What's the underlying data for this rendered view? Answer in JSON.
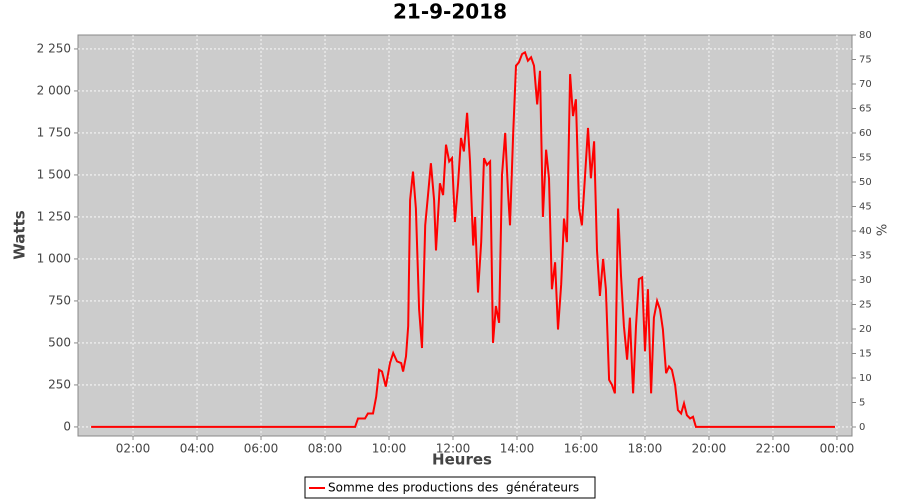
{
  "chart_data": {
    "type": "line",
    "title": "21-9-2018",
    "xlabel": "Heures",
    "ylabel": "Watts",
    "y2label": "%",
    "xlim": [
      0.28,
      24.47
    ],
    "xticks": [
      {
        "value": 2,
        "label": "02:00"
      },
      {
        "value": 4,
        "label": "04:00"
      },
      {
        "value": 6,
        "label": "06:00"
      },
      {
        "value": 8,
        "label": "08:00"
      },
      {
        "value": 10,
        "label": "10:00"
      },
      {
        "value": 12,
        "label": "12:00"
      },
      {
        "value": 14,
        "label": "14:00"
      },
      {
        "value": 16,
        "label": "16:00"
      },
      {
        "value": 18,
        "label": "18:00"
      },
      {
        "value": 20,
        "label": "20:00"
      },
      {
        "value": 22,
        "label": "22:00"
      },
      {
        "value": 24,
        "label": "00:00"
      }
    ],
    "ylim": [
      -54,
      2333
    ],
    "yticks": [
      0,
      250,
      500,
      750,
      {
        "value": 1000,
        "label": "1 000"
      },
      {
        "value": 1250,
        "label": "1 250"
      },
      {
        "value": 1500,
        "label": "1 500"
      },
      {
        "value": 1750,
        "label": "1 750"
      },
      {
        "value": 2000,
        "label": "2 000"
      },
      {
        "value": 2250,
        "label": "2 250"
      }
    ],
    "y2lim": [
      -1.84,
      80
    ],
    "y2ticks": [
      0,
      5,
      10,
      15,
      20,
      25,
      30,
      35,
      40,
      45,
      50,
      55,
      60,
      65,
      70,
      75,
      80
    ],
    "grid": true,
    "legend": "bottom",
    "series": [
      {
        "name": "Somme des productions des  générateurs",
        "color": "#ff0000",
        "x": [
          0.69,
          8.94,
          9.03,
          9.25,
          9.34,
          9.5,
          9.6,
          9.69,
          9.78,
          9.9,
          10.03,
          10.13,
          10.25,
          10.38,
          10.44,
          10.53,
          10.6,
          10.66,
          10.75,
          10.84,
          10.94,
          11.03,
          11.13,
          11.22,
          11.31,
          11.41,
          11.47,
          11.59,
          11.69,
          11.78,
          11.88,
          11.97,
          12.06,
          12.16,
          12.25,
          12.34,
          12.44,
          12.53,
          12.63,
          12.69,
          12.78,
          12.88,
          12.97,
          13.06,
          13.16,
          13.25,
          13.34,
          13.44,
          13.53,
          13.63,
          13.72,
          13.78,
          13.88,
          13.97,
          14.06,
          14.16,
          14.25,
          14.34,
          14.44,
          14.53,
          14.63,
          14.72,
          14.81,
          14.91,
          15,
          15.09,
          15.19,
          15.28,
          15.38,
          15.47,
          15.56,
          15.66,
          15.75,
          15.84,
          15.94,
          16.03,
          16.13,
          16.22,
          16.31,
          16.41,
          16.5,
          16.59,
          16.69,
          16.78,
          16.88,
          16.97,
          17.06,
          17.16,
          17.25,
          17.34,
          17.44,
          17.53,
          17.63,
          17.72,
          17.81,
          17.91,
          18,
          18.09,
          18.19,
          18.28,
          18.38,
          18.47,
          18.56,
          18.66,
          18.75,
          18.84,
          18.94,
          19.03,
          19.13,
          19.22,
          19.31,
          19.41,
          19.5,
          19.59,
          23.94
        ],
        "values": [
          0,
          0,
          50,
          50,
          80,
          80,
          180,
          340,
          330,
          240,
          380,
          440,
          390,
          380,
          330,
          420,
          600,
          1350,
          1520,
          1300,
          700,
          470,
          1200,
          1380,
          1570,
          1350,
          1050,
          1450,
          1380,
          1680,
          1580,
          1600,
          1220,
          1450,
          1720,
          1640,
          1870,
          1580,
          1080,
          1250,
          800,
          1100,
          1600,
          1560,
          1580,
          500,
          720,
          620,
          1500,
          1750,
          1400,
          1200,
          1750,
          2150,
          2170,
          2220,
          2230,
          2180,
          2200,
          2150,
          1920,
          2120,
          1250,
          1650,
          1480,
          820,
          980,
          580,
          850,
          1240,
          1100,
          2100,
          1850,
          1950,
          1300,
          1200,
          1500,
          1780,
          1480,
          1700,
          1050,
          780,
          1000,
          820,
          280,
          250,
          200,
          1300,
          900,
          600,
          400,
          650,
          200,
          600,
          880,
          890,
          450,
          820,
          200,
          650,
          750,
          700,
          580,
          320,
          360,
          340,
          250,
          100,
          80,
          140,
          70,
          50,
          60,
          0,
          0
        ]
      }
    ]
  }
}
